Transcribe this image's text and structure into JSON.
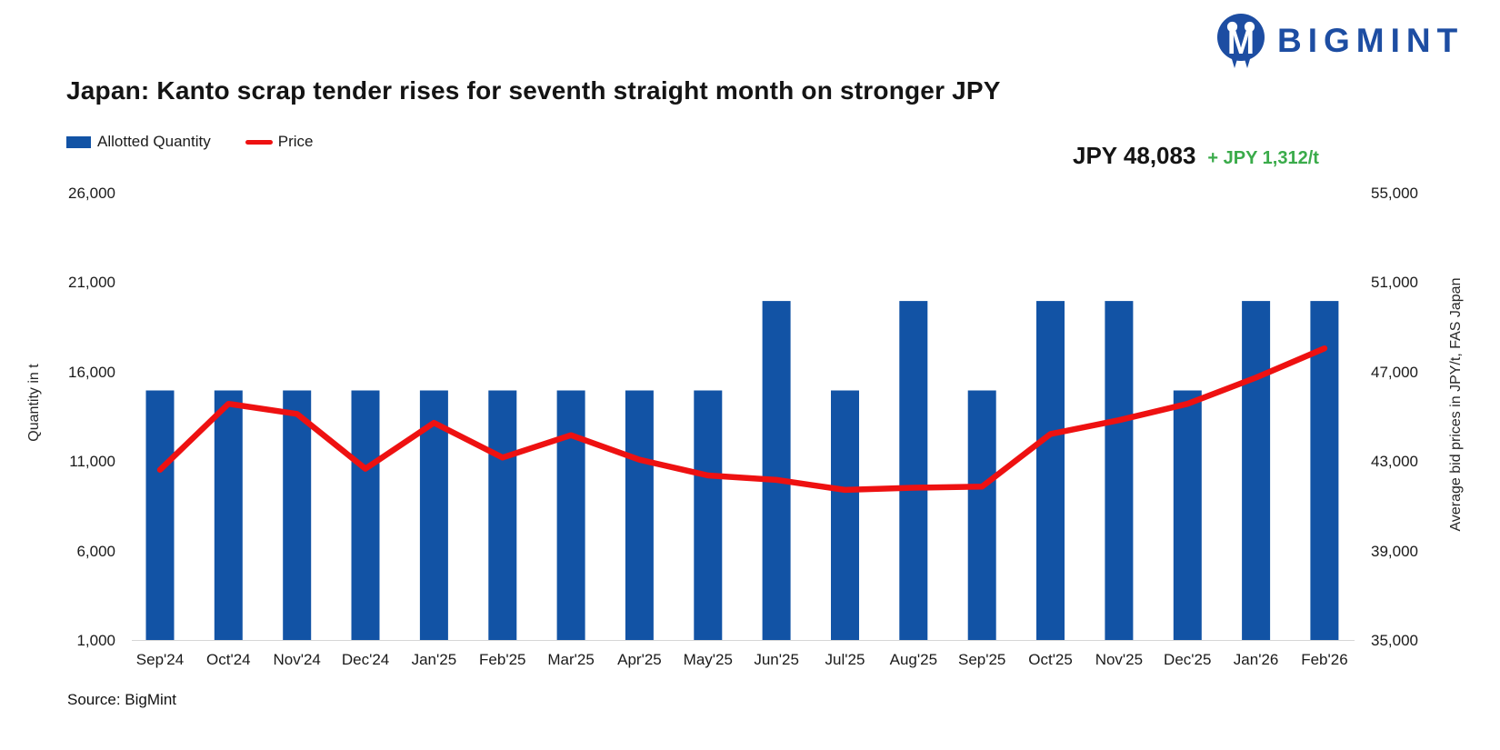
{
  "logo": {
    "text": "BIGMINT"
  },
  "title": "Japan: Kanto scrap tender rises for seventh straight month on stronger JPY",
  "legend": {
    "items": [
      {
        "label": "Allotted Quantity",
        "type": "bar"
      },
      {
        "label": "Price",
        "type": "line"
      }
    ]
  },
  "annotation": {
    "price": "JPY 48,083",
    "change": "+ JPY 1,312/t"
  },
  "source": "Source: BigMint",
  "colors": {
    "brand_blue": "#1d4da2",
    "bar_blue": "#1253a5",
    "price_red": "#ee1111",
    "change_green": "#3aab4a",
    "text_dark": "#141414"
  },
  "chart_data": {
    "type": "bar",
    "subtype": "bar+line combo, dual axis",
    "categories": [
      "Sep'24",
      "Oct'24",
      "Nov'24",
      "Dec'24",
      "Jan'25",
      "Feb'25",
      "Mar'25",
      "Apr'25",
      "May'25",
      "Jun'25",
      "Jul'25",
      "Aug'25",
      "Sep'25",
      "Oct'25",
      "Nov'25",
      "Dec'25",
      "Jan'26",
      "Feb'26"
    ],
    "series": [
      {
        "name": "Allotted Quantity",
        "type": "bar",
        "axis": "left",
        "values": [
          15000,
          15000,
          15000,
          15000,
          15000,
          15000,
          15000,
          15000,
          15000,
          20000,
          15000,
          20000,
          15000,
          20000,
          20000,
          15000,
          20000,
          20000
        ]
      },
      {
        "name": "Price",
        "type": "line",
        "axis": "right",
        "values": [
          42650,
          45600,
          45150,
          42700,
          44750,
          43200,
          44200,
          43100,
          42400,
          42200,
          41750,
          41850,
          41900,
          44250,
          44870,
          45600,
          46771,
          48083
        ]
      }
    ],
    "left_axis": {
      "title": "Quantity in t",
      "min": 1000,
      "max": 26000,
      "ticks": [
        "26,000",
        "21,000",
        "16,000",
        "11,000",
        "6,000",
        "1,000"
      ]
    },
    "right_axis": {
      "title": "Average bid prices in JPY/t, FAS Japan",
      "min": 35000,
      "max": 55000,
      "ticks": [
        "55,000",
        "51,000",
        "47,000",
        "43,000",
        "39,000",
        "35,000"
      ]
    },
    "grid": false,
    "legend_position": "top-left"
  }
}
